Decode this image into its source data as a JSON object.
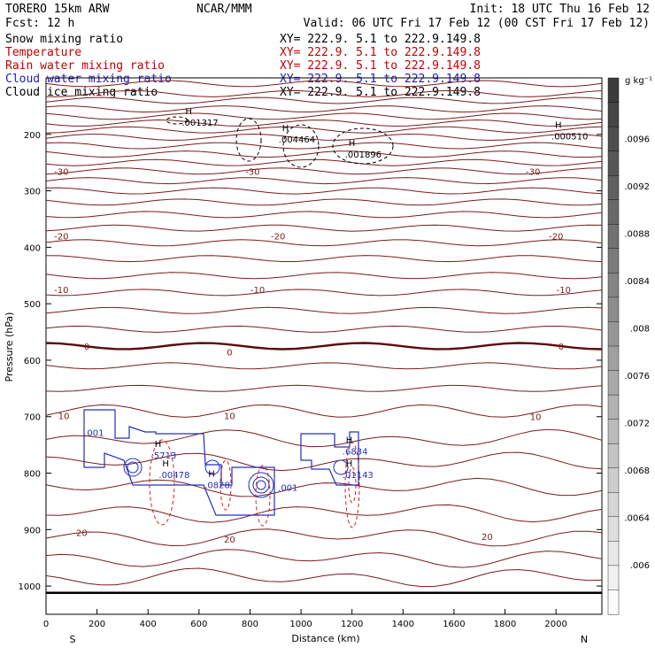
{
  "header": {
    "model": "TORERO  15km ARW",
    "org": "NCAR/MMM",
    "init": "Init: 18 UTC Thu 16 Feb 12",
    "fcst": "Fcst:  12 h",
    "valid": "Valid: 06 UTC Fri 17 Feb 12 (00 CST Fri 17 Feb 12)"
  },
  "legend": [
    {
      "label": "Snow mixing ratio",
      "xy": "XY= 222.9.  5.1 to 222.9.149.8",
      "color": "#000000"
    },
    {
      "label": "Temperature",
      "xy": "XY= 222.9.  5.1 to 222.9.149.8",
      "color": "#c00000"
    },
    {
      "label": "Rain water mixing ratio",
      "xy": "XY= 222.9.  5.1 to 222.9.149.8",
      "color": "#c00000"
    },
    {
      "label": "Cloud water mixing ratio",
      "xy": "XY= 222.9.  5.1 to 222.9.149.8",
      "color": "#2020c0"
    },
    {
      "label": "Cloud ice mixing ratio",
      "xy": "XY= 222.9.  5.1 to 222.9.149.8",
      "color": "#000000"
    }
  ],
  "colors": {
    "temperature": "#7a1c1c",
    "freezing": "#5a0a0a",
    "rain": "#d02020",
    "cloudwater": "#2030c0",
    "snow": "#000000",
    "ground": "#000000"
  },
  "chart_data": {
    "type": "contour-cross-section",
    "xlabel": "Distance (km)",
    "ylabel": "Pressure (hPa)",
    "xlim": [
      0,
      2180
    ],
    "ylim": [
      1050,
      100
    ],
    "xticks": [
      0,
      200,
      400,
      600,
      800,
      1000,
      1200,
      1400,
      1600,
      1800,
      2000
    ],
    "yticks": [
      200,
      300,
      400,
      500,
      600,
      700,
      800,
      900,
      1000
    ],
    "end_labels": {
      "left": "S",
      "right": "N"
    },
    "colorbar": {
      "unit": "g kg⁻¹",
      "ticks": [
        ".006",
        ".0064",
        ".0068",
        ".0072",
        ".0076",
        ".008",
        ".0084",
        ".0088",
        ".0092",
        ".0096"
      ]
    },
    "temperature_levels_base": [
      110,
      128,
      140,
      155,
      168,
      180,
      192,
      205,
      220,
      235,
      250,
      265,
      282,
      300,
      320,
      342,
      366,
      392,
      420,
      450,
      480,
      512,
      545,
      575,
      610,
      650,
      690,
      740,
      780,
      825,
      870,
      912,
      950,
      985
    ],
    "temperature_labels": [
      {
        "text": "-30",
        "x": 60,
        "p": 265
      },
      {
        "text": "-30",
        "x": 810,
        "p": 265
      },
      {
        "text": "-30",
        "x": 1910,
        "p": 265
      },
      {
        "text": "-20",
        "x": 60,
        "p": 380
      },
      {
        "text": "-20",
        "x": 910,
        "p": 380
      },
      {
        "text": "-20",
        "x": 2000,
        "p": 380
      },
      {
        "text": "-10",
        "x": 60,
        "p": 475
      },
      {
        "text": "-10",
        "x": 830,
        "p": 475
      },
      {
        "text": "-10",
        "x": 2030,
        "p": 475
      },
      {
        "text": "0",
        "x": 160,
        "p": 575
      },
      {
        "text": "0",
        "x": 720,
        "p": 585
      },
      {
        "text": "0",
        "x": 2020,
        "p": 575
      },
      {
        "text": "10",
        "x": 70,
        "p": 698
      },
      {
        "text": "10",
        "x": 720,
        "p": 698
      },
      {
        "text": "10",
        "x": 1920,
        "p": 700
      },
      {
        "text": "20",
        "x": 140,
        "p": 905
      },
      {
        "text": "20",
        "x": 720,
        "p": 917
      },
      {
        "text": "20",
        "x": 1730,
        "p": 912
      }
    ],
    "maxima": [
      {
        "text": ".001317",
        "x": 560,
        "p": 180
      },
      {
        "text": ".004464",
        "x": 940,
        "p": 210
      },
      {
        "text": ".001896",
        "x": 1200,
        "p": 236
      },
      {
        "text": ".000510",
        "x": 2010,
        "p": 204
      },
      {
        "text": ".5713",
        "x": 440,
        "p": 769
      },
      {
        "text": ".00478",
        "x": 470,
        "p": 804
      },
      {
        "text": ".0828",
        "x": 650,
        "p": 822
      },
      {
        "text": ".6834",
        "x": 1190,
        "p": 762
      },
      {
        "text": ".01143",
        "x": 1190,
        "p": 804
      }
    ],
    "small_labels": [
      {
        "text": ".001",
        "x": 150,
        "p": 728
      },
      {
        "text": ".001",
        "x": 910,
        "p": 825
      }
    ],
    "surface_pressure": 1012
  }
}
